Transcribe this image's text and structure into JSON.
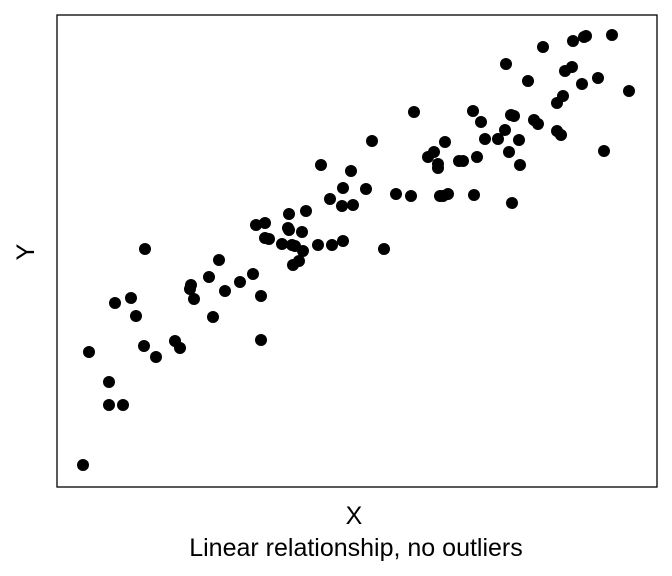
{
  "chart_data": {
    "type": "scatter",
    "title": "",
    "caption": "Linear relationship, no outliers",
    "xlabel": "X",
    "ylabel": "Y",
    "x_ticks": "none",
    "y_ticks": "none",
    "grid": false,
    "legend": "none",
    "xlim": [
      0,
      600
    ],
    "ylim": [
      0,
      472
    ],
    "marker_color": "#000000",
    "points": [
      [
        26,
        22
      ],
      [
        32,
        135
      ],
      [
        52,
        105
      ],
      [
        52,
        82
      ],
      [
        66,
        82
      ],
      [
        58,
        184
      ],
      [
        74,
        189
      ],
      [
        79,
        171
      ],
      [
        88,
        238
      ],
      [
        87,
        141
      ],
      [
        99,
        130
      ],
      [
        118,
        146
      ],
      [
        123,
        139
      ],
      [
        134,
        202
      ],
      [
        133,
        198
      ],
      [
        137,
        188
      ],
      [
        152,
        210
      ],
      [
        156,
        170
      ],
      [
        162,
        227
      ],
      [
        168,
        196
      ],
      [
        183,
        205
      ],
      [
        196,
        213
      ],
      [
        204,
        147
      ],
      [
        204,
        191
      ],
      [
        199,
        262
      ],
      [
        208,
        264
      ],
      [
        208,
        249
      ],
      [
        212,
        248
      ],
      [
        225,
        243
      ],
      [
        231,
        259
      ],
      [
        232,
        273
      ],
      [
        232,
        257
      ],
      [
        235,
        242
      ],
      [
        236,
        222
      ],
      [
        245,
        255
      ],
      [
        246,
        236
      ],
      [
        249,
        276
      ],
      [
        242,
        226
      ],
      [
        238,
        241
      ],
      [
        261,
        242
      ],
      [
        264,
        322
      ],
      [
        273,
        288
      ],
      [
        275,
        242
      ],
      [
        286,
        299
      ],
      [
        285,
        281
      ],
      [
        286,
        246
      ],
      [
        294,
        316
      ],
      [
        296,
        282
      ],
      [
        309,
        298
      ],
      [
        315,
        346
      ],
      [
        327,
        238
      ],
      [
        339,
        293
      ],
      [
        354,
        291
      ],
      [
        357,
        375
      ],
      [
        371,
        330
      ],
      [
        381,
        323
      ],
      [
        377,
        335
      ],
      [
        381,
        319
      ],
      [
        383,
        291
      ],
      [
        388,
        345
      ],
      [
        386,
        291
      ],
      [
        391,
        293
      ],
      [
        402,
        326
      ],
      [
        406,
        326
      ],
      [
        417,
        292
      ],
      [
        416,
        376
      ],
      [
        420,
        330
      ],
      [
        424,
        365
      ],
      [
        428,
        348
      ],
      [
        441,
        348
      ],
      [
        448,
        357
      ],
      [
        452,
        335
      ],
      [
        449,
        423
      ],
      [
        454,
        372
      ],
      [
        455,
        284
      ],
      [
        457,
        371
      ],
      [
        462,
        347
      ],
      [
        463,
        322
      ],
      [
        471,
        406
      ],
      [
        477,
        367
      ],
      [
        481,
        363
      ],
      [
        486,
        440
      ],
      [
        500,
        356
      ],
      [
        500,
        384
      ],
      [
        504,
        352
      ],
      [
        506,
        391
      ],
      [
        508,
        416
      ],
      [
        515,
        420
      ],
      [
        516,
        446
      ],
      [
        525,
        403
      ],
      [
        527,
        450
      ],
      [
        529,
        451
      ],
      [
        541,
        409
      ],
      [
        547,
        336
      ],
      [
        555,
        452
      ],
      [
        572,
        396
      ]
    ]
  }
}
